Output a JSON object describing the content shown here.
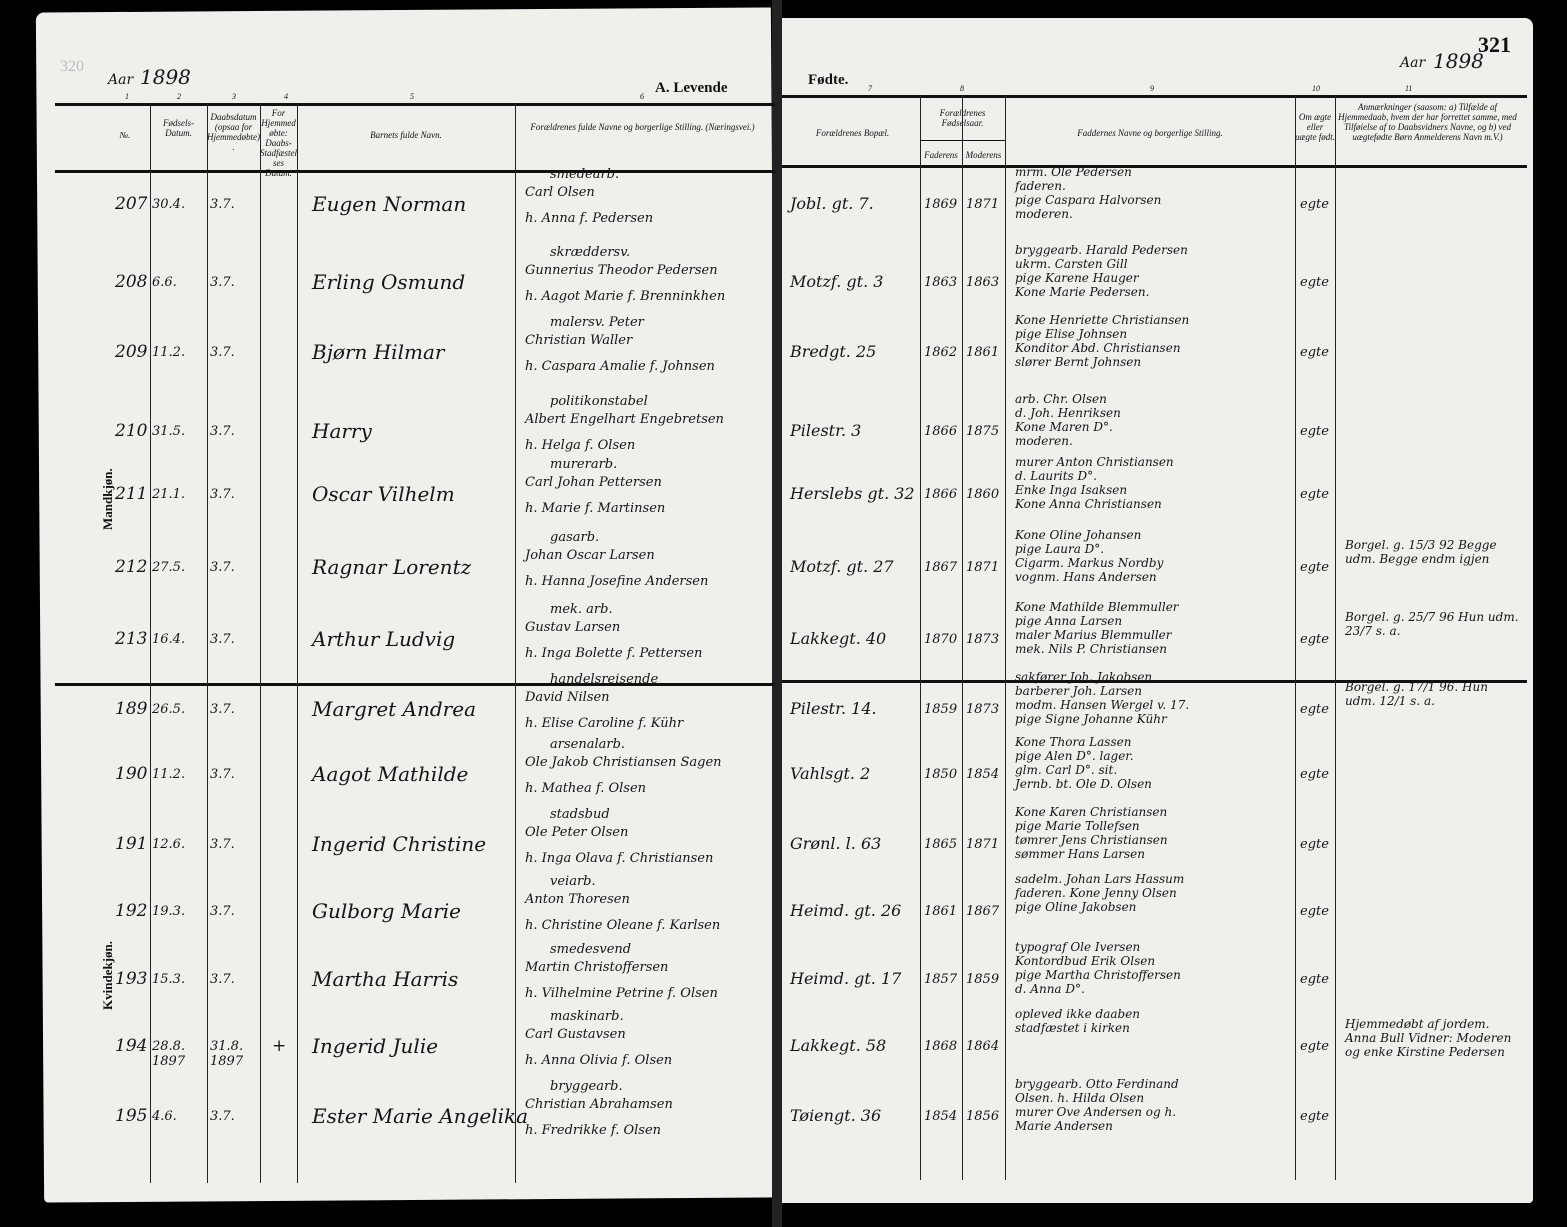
{
  "left_page": {
    "page_number": "320",
    "year_label": "Aar",
    "year": "1898",
    "title": "A. Levende",
    "column_numbers": [
      "1",
      "2",
      "3",
      "4",
      "5",
      "6"
    ],
    "headers": {
      "no": "№.",
      "birth_date": "Fødsels-Datum.",
      "baptism_date": "Daabsdatum (opsaa for Hjemmedøbte).",
      "home_baptized": "For Hjemmedøbte: Daabs-Stadfæstelses Datum.",
      "child_name": "Barnets fulde Navn.",
      "parents": "Forældrenes fulde Navne og borgerlige Stilling. (Næringsvei.)"
    }
  },
  "right_page": {
    "page_number": "321",
    "year_label": "Aar",
    "year": "1898",
    "title": "Fødte.",
    "column_numbers": [
      "7",
      "8",
      "9",
      "10",
      "11"
    ],
    "headers": {
      "residence": "Forældrenes Bopæl.",
      "birth_years": "Forældrenes Fødselsaar.",
      "father": "Faderens",
      "mother": "Moderens",
      "godparents": "Faddernes Navne og borgerlige Stilling.",
      "legit": "Om ægte eller uægte født.",
      "remarks": "Anmærkninger (saasom: a) Tilfælde af Hjemmedaab, hvem der har forrettet samme, med Tilføielse af to Daabsvidners Navne, og b) ved uægtefødte Børn Anmelderens Navn m.V.)"
    }
  },
  "sections": {
    "male": "Mandkjøn.",
    "female": "Kvindekjøn."
  },
  "rows": [
    {
      "no": "207",
      "birth": "30.4.",
      "baptism": "3.7.",
      "home": "",
      "name": "Eugen Norman",
      "occ": "smedearb.",
      "father": "Carl Olsen",
      "mother": "h. Anna f. Pedersen",
      "addr": "Jobl. gt. 7.",
      "fy": "1869",
      "my": "1871",
      "god": [
        "mrm. Ole Pedersen",
        "faderen.",
        "pige Caspara Halvorsen",
        "moderen."
      ],
      "legit": "egte",
      "remark": ""
    },
    {
      "no": "208",
      "birth": "6.6.",
      "baptism": "3.7.",
      "home": "",
      "name": "Erling Osmund",
      "occ": "skræddersv.",
      "father": "Gunnerius Theodor Pedersen",
      "mother": "h. Aagot Marie f. Brenninkhen",
      "addr": "Motzf. gt. 3",
      "fy": "1863",
      "my": "1863",
      "god": [
        "bryggearb. Harald Pedersen",
        "ukrm. Carsten Gill",
        "pige Karene Hauger",
        "Kone Marie Pedersen."
      ],
      "legit": "egte",
      "remark": ""
    },
    {
      "no": "209",
      "birth": "11.2.",
      "baptism": "3.7.",
      "home": "",
      "name": "Bjørn Hilmar",
      "occ": "malersv. Peter",
      "father": "Christian Waller",
      "mother": "h. Caspara Amalie f. Johnsen",
      "addr": "Bredgt. 25",
      "fy": "1862",
      "my": "1861",
      "god": [
        "Kone Henriette Christiansen",
        "pige Elise Johnsen",
        "Konditor Abd. Christiansen",
        "slører Bernt Johnsen"
      ],
      "legit": "egte",
      "remark": ""
    },
    {
      "no": "210",
      "birth": "31.5.",
      "baptism": "3.7.",
      "home": "",
      "name": "Harry",
      "occ": "politikonstabel",
      "father": "Albert Engelhart Engebretsen",
      "mother": "h. Helga f. Olsen",
      "addr": "Pilestr. 3",
      "fy": "1866",
      "my": "1875",
      "god": [
        "arb. Chr. Olsen",
        "d. Joh. Henriksen",
        "Kone Maren D°.",
        "moderen."
      ],
      "legit": "egte",
      "remark": ""
    },
    {
      "no": "211",
      "birth": "21.1.",
      "baptism": "3.7.",
      "home": "",
      "name": "Oscar Vilhelm",
      "occ": "murerarb.",
      "father": "Carl Johan Pettersen",
      "mother": "h. Marie f. Martinsen",
      "addr": "Herslebs gt. 32",
      "fy": "1866",
      "my": "1860",
      "god": [
        "murer Anton Christiansen",
        "d. Laurits D°.",
        "Enke Inga Isaksen",
        "Kone Anna Christiansen"
      ],
      "legit": "egte",
      "remark": ""
    },
    {
      "no": "212",
      "birth": "27.5.",
      "baptism": "3.7.",
      "home": "",
      "name": "Ragnar Lorentz",
      "occ": "gasarb.",
      "father": "Johan Oscar Larsen",
      "mother": "h. Hanna Josefine Andersen",
      "addr": "Motzf. gt. 27",
      "fy": "1867",
      "my": "1871",
      "god": [
        "Kone Oline Johansen",
        "pige Laura D°.",
        "Cigarm. Markus Nordby",
        "vognm. Hans Andersen"
      ],
      "legit": "egte",
      "remark": "Borgel. g. 15/3 92 Begge udm. Begge endm igjen"
    },
    {
      "no": "213",
      "birth": "16.4.",
      "baptism": "3.7.",
      "home": "",
      "name": "Arthur Ludvig",
      "occ": "mek. arb.",
      "father": "Gustav Larsen",
      "mother": "h. Inga Bolette f. Pettersen",
      "addr": "Lakkegt. 40",
      "fy": "1870",
      "my": "1873",
      "god": [
        "Kone Mathilde Blemmuller",
        "pige Anna Larsen",
        "maler Marius Blemmuller",
        "mek. Nils P. Christiansen"
      ],
      "legit": "egte",
      "remark": "Borgel. g. 25/7 96 Hun udm. 23/7 s. a."
    },
    {
      "no": "189",
      "birth": "26.5.",
      "baptism": "3.7.",
      "home": "",
      "name": "Margret Andrea",
      "occ": "handelsreisende",
      "father": "David Nilsen",
      "mother": "h. Elise Caroline f. Kühr",
      "addr": "Pilestr. 14.",
      "fy": "1859",
      "my": "1873",
      "god": [
        "sakfører Joh. Jakobsen",
        "barberer Joh. Larsen",
        "modm. Hansen Wergel v. 17.",
        "pige Signe Johanne Kühr"
      ],
      "legit": "egte",
      "remark": "Borgel. g. 17/1 96. Hun udm. 12/1 s. a."
    },
    {
      "no": "190",
      "birth": "11.2.",
      "baptism": "3.7.",
      "home": "",
      "name": "Aagot Mathilde",
      "occ": "arsenalarb.",
      "father": "Ole Jakob Christiansen Sagen",
      "mother": "h. Mathea f. Olsen",
      "addr": "Vahlsgt. 2",
      "fy": "1850",
      "my": "1854",
      "god": [
        "Kone Thora Lassen",
        "pige Alen D°. lager.",
        "glm. Carl D°. sit.",
        "Jernb. bt. Ole D. Olsen"
      ],
      "legit": "egte",
      "remark": ""
    },
    {
      "no": "191",
      "birth": "12.6.",
      "baptism": "3.7.",
      "home": "",
      "name": "Ingerid Christine",
      "occ": "stadsbud",
      "father": "Ole Peter Olsen",
      "mother": "h. Inga Olava f. Christiansen",
      "addr": "Grønl. l. 63",
      "fy": "1865",
      "my": "1871",
      "god": [
        "Kone Karen Christiansen",
        "pige Marie Tollefsen",
        "tømrer Jens Christiansen",
        "sømmer Hans Larsen"
      ],
      "legit": "egte",
      "remark": ""
    },
    {
      "no": "192",
      "birth": "19.3.",
      "baptism": "3.7.",
      "home": "",
      "name": "Gulborg Marie",
      "occ": "veiarb.",
      "father": "Anton Thoresen",
      "mother": "h. Christine Oleane f. Karlsen",
      "addr": "Heimd. gt. 26",
      "fy": "1861",
      "my": "1867",
      "god": [
        "sadelm. Johan Lars Hassum",
        "faderen. Kone Jenny Olsen",
        "pige Oline Jakobsen"
      ],
      "legit": "egte",
      "remark": ""
    },
    {
      "no": "193",
      "birth": "15.3.",
      "baptism": "3.7.",
      "home": "",
      "name": "Martha Harris",
      "occ": "smedesvend",
      "father": "Martin Christoffersen",
      "mother": "h. Vilhelmine Petrine f. Olsen",
      "addr": "Heimd. gt. 17",
      "fy": "1857",
      "my": "1859",
      "god": [
        "typograf Ole Iversen",
        "Kontordbud Erik Olsen",
        "pige Martha Christoffersen",
        "d. Anna D°."
      ],
      "legit": "egte",
      "remark": ""
    },
    {
      "no": "194",
      "birth": "28.8. 1897",
      "baptism": "31.8. 1897",
      "home": "+",
      "name": "Ingerid Julie",
      "occ": "maskinarb.",
      "father": "Carl Gustavsen",
      "mother": "h. Anna Olivia f. Olsen",
      "addr": "Lakkegt. 58",
      "fy": "1868",
      "my": "1864",
      "god": [
        "opleved ikke daaben",
        "stadfæstet i kirken"
      ],
      "legit": "egte",
      "remark": "Hjemmedøbt af jordem. Anna Bull Vidner: Moderen og enke Kirstine Pedersen"
    },
    {
      "no": "195",
      "birth": "4.6.",
      "baptism": "3.7.",
      "home": "",
      "name": "Ester Marie Angelika",
      "occ": "bryggearb.",
      "father": "Christian Abrahamsen",
      "mother": "h. Fredrikke f. Olsen",
      "addr": "Tøiengt. 36",
      "fy": "1854",
      "my": "1856",
      "god": [
        "bryggearb. Otto Ferdinand",
        "Olsen. h. Hilda Olsen",
        "murer Ove Andersen og h.",
        "Marie Andersen"
      ],
      "legit": "egte",
      "remark": ""
    }
  ]
}
